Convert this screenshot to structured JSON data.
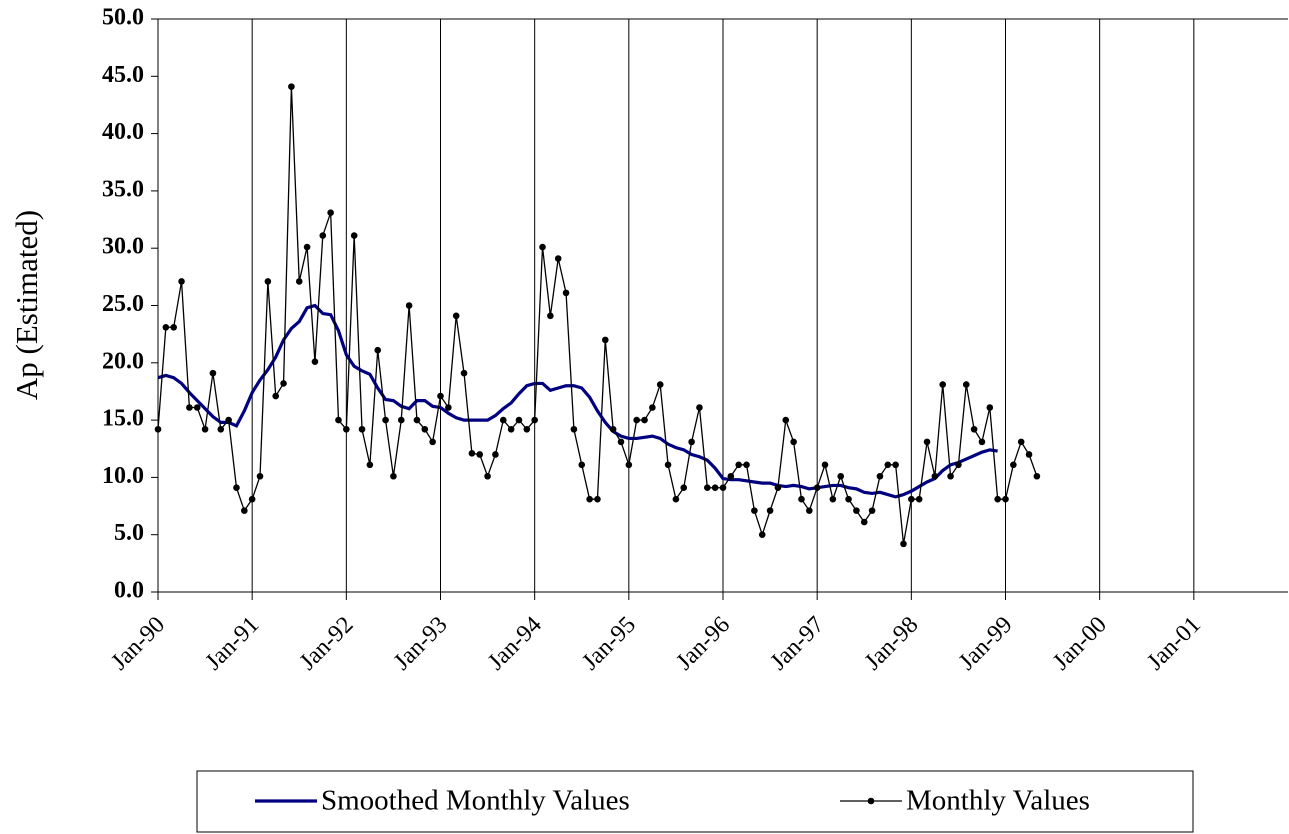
{
  "chart_data": {
    "type": "line",
    "y_label": "Ap (Estimated)",
    "x": [
      "1990-01",
      "1990-02",
      "1990-03",
      "1990-04",
      "1990-05",
      "1990-06",
      "1990-07",
      "1990-08",
      "1990-09",
      "1990-10",
      "1990-11",
      "1990-12",
      "1991-01",
      "1991-02",
      "1991-03",
      "1991-04",
      "1991-05",
      "1991-06",
      "1991-07",
      "1991-08",
      "1991-09",
      "1991-10",
      "1991-11",
      "1991-12",
      "1992-01",
      "1992-02",
      "1992-03",
      "1992-04",
      "1992-05",
      "1992-06",
      "1992-07",
      "1992-08",
      "1992-09",
      "1992-10",
      "1992-11",
      "1992-12",
      "1993-01",
      "1993-02",
      "1993-03",
      "1993-04",
      "1993-05",
      "1993-06",
      "1993-07",
      "1993-08",
      "1993-09",
      "1993-10",
      "1993-11",
      "1993-12",
      "1994-01",
      "1994-02",
      "1994-03",
      "1994-04",
      "1994-05",
      "1994-06",
      "1994-07",
      "1994-08",
      "1994-09",
      "1994-10",
      "1994-11",
      "1994-12",
      "1995-01",
      "1995-02",
      "1995-03",
      "1995-04",
      "1995-05",
      "1995-06",
      "1995-07",
      "1995-08",
      "1995-09",
      "1995-10",
      "1995-11",
      "1995-12",
      "1996-01",
      "1996-02",
      "1996-03",
      "1996-04",
      "1996-05",
      "1996-06",
      "1996-07",
      "1996-08",
      "1996-09",
      "1996-10",
      "1996-11",
      "1996-12",
      "1997-01",
      "1997-02",
      "1997-03",
      "1997-04",
      "1997-05",
      "1997-06",
      "1997-07",
      "1997-08",
      "1997-09",
      "1997-10",
      "1997-11",
      "1997-12",
      "1998-01",
      "1998-02",
      "1998-03",
      "1998-04",
      "1998-05",
      "1998-06",
      "1998-07",
      "1998-08",
      "1998-09",
      "1998-10",
      "1998-11",
      "1998-12",
      "1999-01",
      "1999-02",
      "1999-03",
      "1999-04",
      "1999-05"
    ],
    "series": [
      {
        "name": "Smoothed Monthly Values",
        "color": "#000080",
        "marker": false,
        "values": [
          18.7,
          18.9,
          18.7,
          18.2,
          17.4,
          16.7,
          16.0,
          15.3,
          14.8,
          14.8,
          14.5,
          15.8,
          17.4,
          18.5,
          19.4,
          20.5,
          22.0,
          23.0,
          23.6,
          24.8,
          25.0,
          24.3,
          24.2,
          22.8,
          20.7,
          19.7,
          19.3,
          19.0,
          17.8,
          16.8,
          16.7,
          16.2,
          16.0,
          16.7,
          16.7,
          16.2,
          16.1,
          15.6,
          15.2,
          15.0,
          15.0,
          15.0,
          15.0,
          15.4,
          16.0,
          16.5,
          17.3,
          18.0,
          18.2,
          18.2,
          17.6,
          17.8,
          18.0,
          18.0,
          17.8,
          17.0,
          15.8,
          14.8,
          14.0,
          13.6,
          13.4,
          13.4,
          13.5,
          13.6,
          13.4,
          12.9,
          12.6,
          12.4,
          12.0,
          11.8,
          11.5,
          10.8,
          9.9,
          9.8,
          9.8,
          9.7,
          9.6,
          9.5,
          9.5,
          9.3,
          9.2,
          9.3,
          9.2,
          9.0,
          9.1,
          9.2,
          9.3,
          9.3,
          9.1,
          9.0,
          8.7,
          8.6,
          8.7,
          8.5,
          8.3,
          8.5,
          8.8,
          9.2,
          9.6,
          9.9,
          10.6,
          11.1,
          11.3,
          11.6,
          11.9,
          12.2,
          12.4,
          12.3,
          null,
          null,
          null,
          null,
          null
        ]
      },
      {
        "name": "Monthly Values",
        "color": "#000000",
        "marker": true,
        "values": [
          14.2,
          23.1,
          23.1,
          27.1,
          16.1,
          16.1,
          14.2,
          19.1,
          14.2,
          15.0,
          9.1,
          7.1,
          8.1,
          10.1,
          27.1,
          17.1,
          18.2,
          44.1,
          27.1,
          30.1,
          20.1,
          31.1,
          33.1,
          15.0,
          14.2,
          31.1,
          14.2,
          11.1,
          21.1,
          15.0,
          10.1,
          15.0,
          25.0,
          15.0,
          14.2,
          13.1,
          17.1,
          16.1,
          24.1,
          19.1,
          12.1,
          12.0,
          10.1,
          12.0,
          15.0,
          14.2,
          15.0,
          14.2,
          15.0,
          30.1,
          24.1,
          29.1,
          26.1,
          14.2,
          11.1,
          8.1,
          8.1,
          22.0,
          14.2,
          13.1,
          11.1,
          15.0,
          15.0,
          16.1,
          18.1,
          11.1,
          8.1,
          9.1,
          13.1,
          16.1,
          9.1,
          9.1,
          9.1,
          10.1,
          11.1,
          11.1,
          7.1,
          5.0,
          7.1,
          9.1,
          15.0,
          13.1,
          8.1,
          7.1,
          9.1,
          11.1,
          8.1,
          10.1,
          8.1,
          7.1,
          6.1,
          7.1,
          10.1,
          11.1,
          11.1,
          4.2,
          8.1,
          8.1,
          13.1,
          10.1,
          18.1,
          10.1,
          11.1,
          18.1,
          14.2,
          13.1,
          16.1,
          8.1,
          8.1,
          11.1,
          13.1,
          12.0,
          10.1
        ]
      }
    ],
    "xlim": [
      "1990-01",
      "2002-01"
    ],
    "xticks": [
      {
        "value": "1990-01",
        "label": "Jan-90"
      },
      {
        "value": "1991-01",
        "label": "Jan-91"
      },
      {
        "value": "1992-01",
        "label": "Jan-92"
      },
      {
        "value": "1993-01",
        "label": "Jan-93"
      },
      {
        "value": "1994-01",
        "label": "Jan-94"
      },
      {
        "value": "1995-01",
        "label": "Jan-95"
      },
      {
        "value": "1996-01",
        "label": "Jan-96"
      },
      {
        "value": "1997-01",
        "label": "Jan-97"
      },
      {
        "value": "1998-01",
        "label": "Jan-98"
      },
      {
        "value": "1999-01",
        "label": "Jan-99"
      },
      {
        "value": "2000-01",
        "label": "Jan-00"
      },
      {
        "value": "2001-01",
        "label": "Jan-01"
      }
    ],
    "ylim": [
      0,
      50
    ],
    "yticks": [
      {
        "value": 0,
        "label": "0.0"
      },
      {
        "value": 5,
        "label": "5.0"
      },
      {
        "value": 10,
        "label": "10.0"
      },
      {
        "value": 15,
        "label": "15.0"
      },
      {
        "value": 20,
        "label": "20.0"
      },
      {
        "value": 25,
        "label": "25.0"
      },
      {
        "value": 30,
        "label": "30.0"
      },
      {
        "value": 35,
        "label": "35.0"
      },
      {
        "value": 40,
        "label": "40.0"
      },
      {
        "value": 45,
        "label": "45.0"
      },
      {
        "value": 50,
        "label": "50.0"
      }
    ],
    "grid": "x",
    "legend": "bottom"
  }
}
